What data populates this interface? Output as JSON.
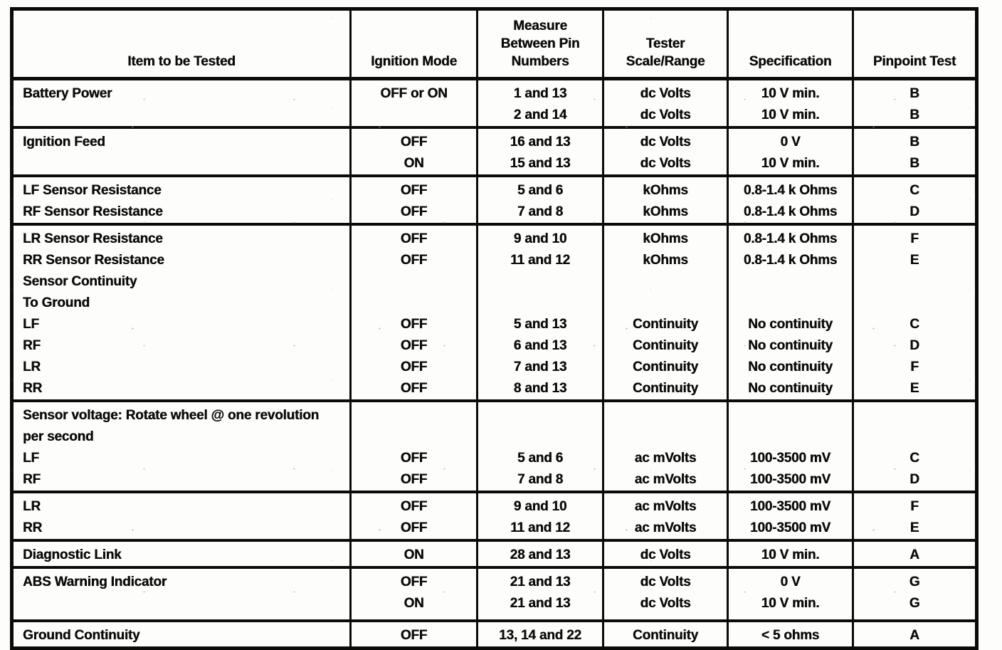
{
  "table": {
    "columns": [
      {
        "name": "item",
        "lines": [
          "Item to be Tested"
        ]
      },
      {
        "name": "mode",
        "lines": [
          "Ignition Mode"
        ]
      },
      {
        "name": "pins",
        "lines": [
          "Measure",
          "Between Pin",
          "Numbers"
        ]
      },
      {
        "name": "scale",
        "lines": [
          "Tester",
          "Scale/Range"
        ]
      },
      {
        "name": "spec",
        "lines": [
          "Specification"
        ]
      },
      {
        "name": "test",
        "lines": [
          "Pinpoint Test"
        ]
      }
    ],
    "sections": [
      {
        "id": "battery-power",
        "lines": [
          [
            "Battery Power",
            "OFF or ON",
            "1 and 13",
            "dc Volts",
            "10 V min.",
            "B"
          ],
          [
            "",
            "",
            "2 and 14",
            "dc Volts",
            "10 V min.",
            "B"
          ]
        ]
      },
      {
        "id": "ignition-feed",
        "lines": [
          [
            "Ignition Feed",
            "OFF",
            "16 and 13",
            "dc Volts",
            "0 V",
            "B"
          ],
          [
            "",
            "ON",
            "15 and 13",
            "dc Volts",
            "10 V min.",
            "B"
          ]
        ]
      },
      {
        "id": "front-sensor-resistance",
        "lines": [
          [
            "LF Sensor Resistance",
            "OFF",
            "5 and 6",
            "kOhms",
            "0.8-1.4 k Ohms",
            "C"
          ],
          [
            "RF Sensor Resistance",
            "OFF",
            "7 and 8",
            "kOhms",
            "0.8-1.4 k Ohms",
            "D"
          ]
        ]
      },
      {
        "id": "rear-sensor-resistance-and-continuity",
        "lines": [
          [
            "LR Sensor Resistance",
            "OFF",
            "9 and 10",
            "kOhms",
            "0.8-1.4 k Ohms",
            "F"
          ],
          [
            "RR Sensor Resistance",
            "OFF",
            "11 and 12",
            "kOhms",
            "0.8-1.4 k Ohms",
            "E"
          ],
          [
            "Sensor Continuity",
            "",
            "",
            "",
            "",
            ""
          ],
          [
            "To Ground",
            "",
            "",
            "",
            "",
            ""
          ],
          [
            "LF",
            "OFF",
            "5 and 13",
            "Continuity",
            "No continuity",
            "C"
          ],
          [
            "RF",
            "OFF",
            "6 and 13",
            "Continuity",
            "No continuity",
            "D"
          ],
          [
            "LR",
            "OFF",
            "7 and 13",
            "Continuity",
            "No continuity",
            "F"
          ],
          [
            "RR",
            "OFF",
            "8 and 13",
            "Continuity",
            "No continuity",
            "E"
          ]
        ]
      },
      {
        "id": "sensor-voltage-front",
        "lines": [
          [
            "Sensor voltage: Rotate wheel @ one revolution",
            "",
            "",
            "",
            "",
            ""
          ],
          [
            "per second",
            "",
            "",
            "",
            "",
            ""
          ],
          [
            "LF",
            "OFF",
            "5 and 6",
            "ac mVolts",
            "100-3500 mV",
            "C"
          ],
          [
            "RF",
            "OFF",
            "7 and 8",
            "ac mVolts",
            "100-3500 mV",
            "D"
          ]
        ]
      },
      {
        "id": "sensor-voltage-rear",
        "lines": [
          [
            "LR",
            "OFF",
            "9 and 10",
            "ac mVolts",
            "100-3500 mV",
            "F"
          ],
          [
            "RR",
            "OFF",
            "11 and 12",
            "ac mVolts",
            "100-3500 mV",
            "E"
          ]
        ]
      },
      {
        "id": "diagnostic-link",
        "lines": [
          [
            "Diagnostic Link",
            "ON",
            "28 and 13",
            "dc Volts",
            "10 V min.",
            "A"
          ]
        ]
      },
      {
        "id": "abs-warning-indicator",
        "lines": [
          [
            "ABS Warning Indicator",
            "OFF",
            "21 and 13",
            "dc Volts",
            "0 V",
            "G"
          ],
          [
            "",
            "ON",
            "21 and 13",
            "dc Volts",
            "10 V min.",
            "G"
          ]
        ]
      },
      {
        "id": "ground-continuity",
        "lines": [
          [
            "Ground Continuity",
            "OFF",
            "13, 14 and 22",
            "Continuity",
            "< 5 ohms",
            "A"
          ]
        ]
      }
    ]
  }
}
